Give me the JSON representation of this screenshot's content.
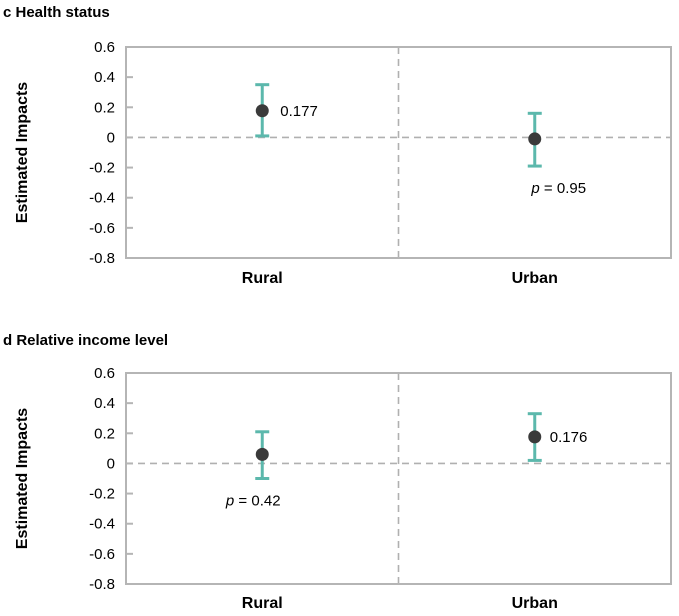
{
  "figure": {
    "background": "#ffffff"
  },
  "style": {
    "error_bar_color": "#5cb8ac",
    "marker_color": "#3a3a3a",
    "frame_color": "#b5b5b5",
    "dashed_line_color": "#b0b0b0",
    "text_color": "#000000"
  },
  "chart_data": [
    {
      "id": "c",
      "type": "scatter",
      "title": "c Health status",
      "ylabel": "Estimated Impacts",
      "categories": [
        "Rural",
        "Urban"
      ],
      "ylim": [
        -0.8,
        0.6
      ],
      "ytick_values": [
        0.6,
        0.4,
        0.2,
        0,
        -0.2,
        -0.4,
        -0.6,
        -0.8
      ],
      "ytick_labels": [
        "0.6",
        "0.4",
        "0.2",
        "0",
        "-0.2",
        "-0.4",
        "-0.6",
        "-0.8"
      ],
      "grid": false,
      "zero_reference_line": true,
      "category_separator_line": true,
      "points": [
        {
          "category": "Rural",
          "value": 0.177,
          "ci_low": 0.01,
          "ci_high": 0.35,
          "annotation": {
            "kind": "value",
            "text": "0.177",
            "dx": 18
          }
        },
        {
          "category": "Urban",
          "value": -0.01,
          "ci_low": -0.19,
          "ci_high": 0.16,
          "annotation": {
            "kind": "p-value",
            "italic": "p",
            "rest": " = 0.95",
            "dx": 24
          }
        }
      ]
    },
    {
      "id": "d",
      "type": "scatter",
      "title": "d Relative income level",
      "ylabel": "Estimated Impacts",
      "categories": [
        "Rural",
        "Urban"
      ],
      "ylim": [
        -0.8,
        0.6
      ],
      "ytick_values": [
        0.6,
        0.4,
        0.2,
        0,
        -0.2,
        -0.4,
        -0.6,
        -0.8
      ],
      "ytick_labels": [
        "0.6",
        "0.4",
        "0.2",
        "0",
        "-0.2",
        "-0.4",
        "-0.6",
        "-0.8"
      ],
      "grid": false,
      "zero_reference_line": true,
      "category_separator_line": true,
      "points": [
        {
          "category": "Rural",
          "value": 0.06,
          "ci_low": -0.1,
          "ci_high": 0.21,
          "annotation": {
            "kind": "p-value",
            "italic": "p",
            "rest": " = 0.42",
            "dx": -9
          }
        },
        {
          "category": "Urban",
          "value": 0.176,
          "ci_low": 0.02,
          "ci_high": 0.33,
          "annotation": {
            "kind": "value",
            "text": "0.176",
            "dx": 15
          }
        }
      ]
    }
  ]
}
